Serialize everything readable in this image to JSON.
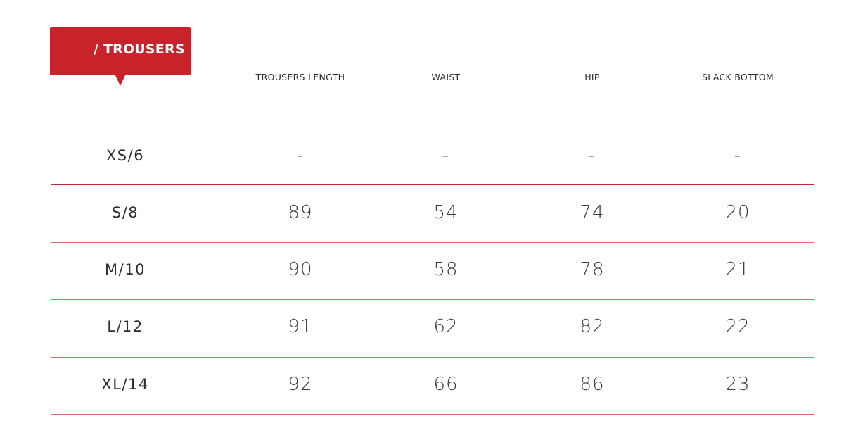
{
  "title": "/ TROUSERS",
  "colors": {
    "accent": "#c8222b"
  },
  "columns": [
    "TROUSERS LENGTH",
    "WAIST",
    "HIP",
    "SLACK BOTTOM"
  ],
  "rows": [
    {
      "size": "XS/6",
      "values": [
        "-",
        "-",
        "-",
        "-"
      ]
    },
    {
      "size": "S/8",
      "values": [
        "89",
        "54",
        "74",
        "20"
      ]
    },
    {
      "size": "M/10",
      "values": [
        "90",
        "58",
        "78",
        "21"
      ]
    },
    {
      "size": "L/12",
      "values": [
        "91",
        "62",
        "82",
        "22"
      ]
    },
    {
      "size": "XL/14",
      "values": [
        "92",
        "66",
        "86",
        "23"
      ]
    }
  ]
}
